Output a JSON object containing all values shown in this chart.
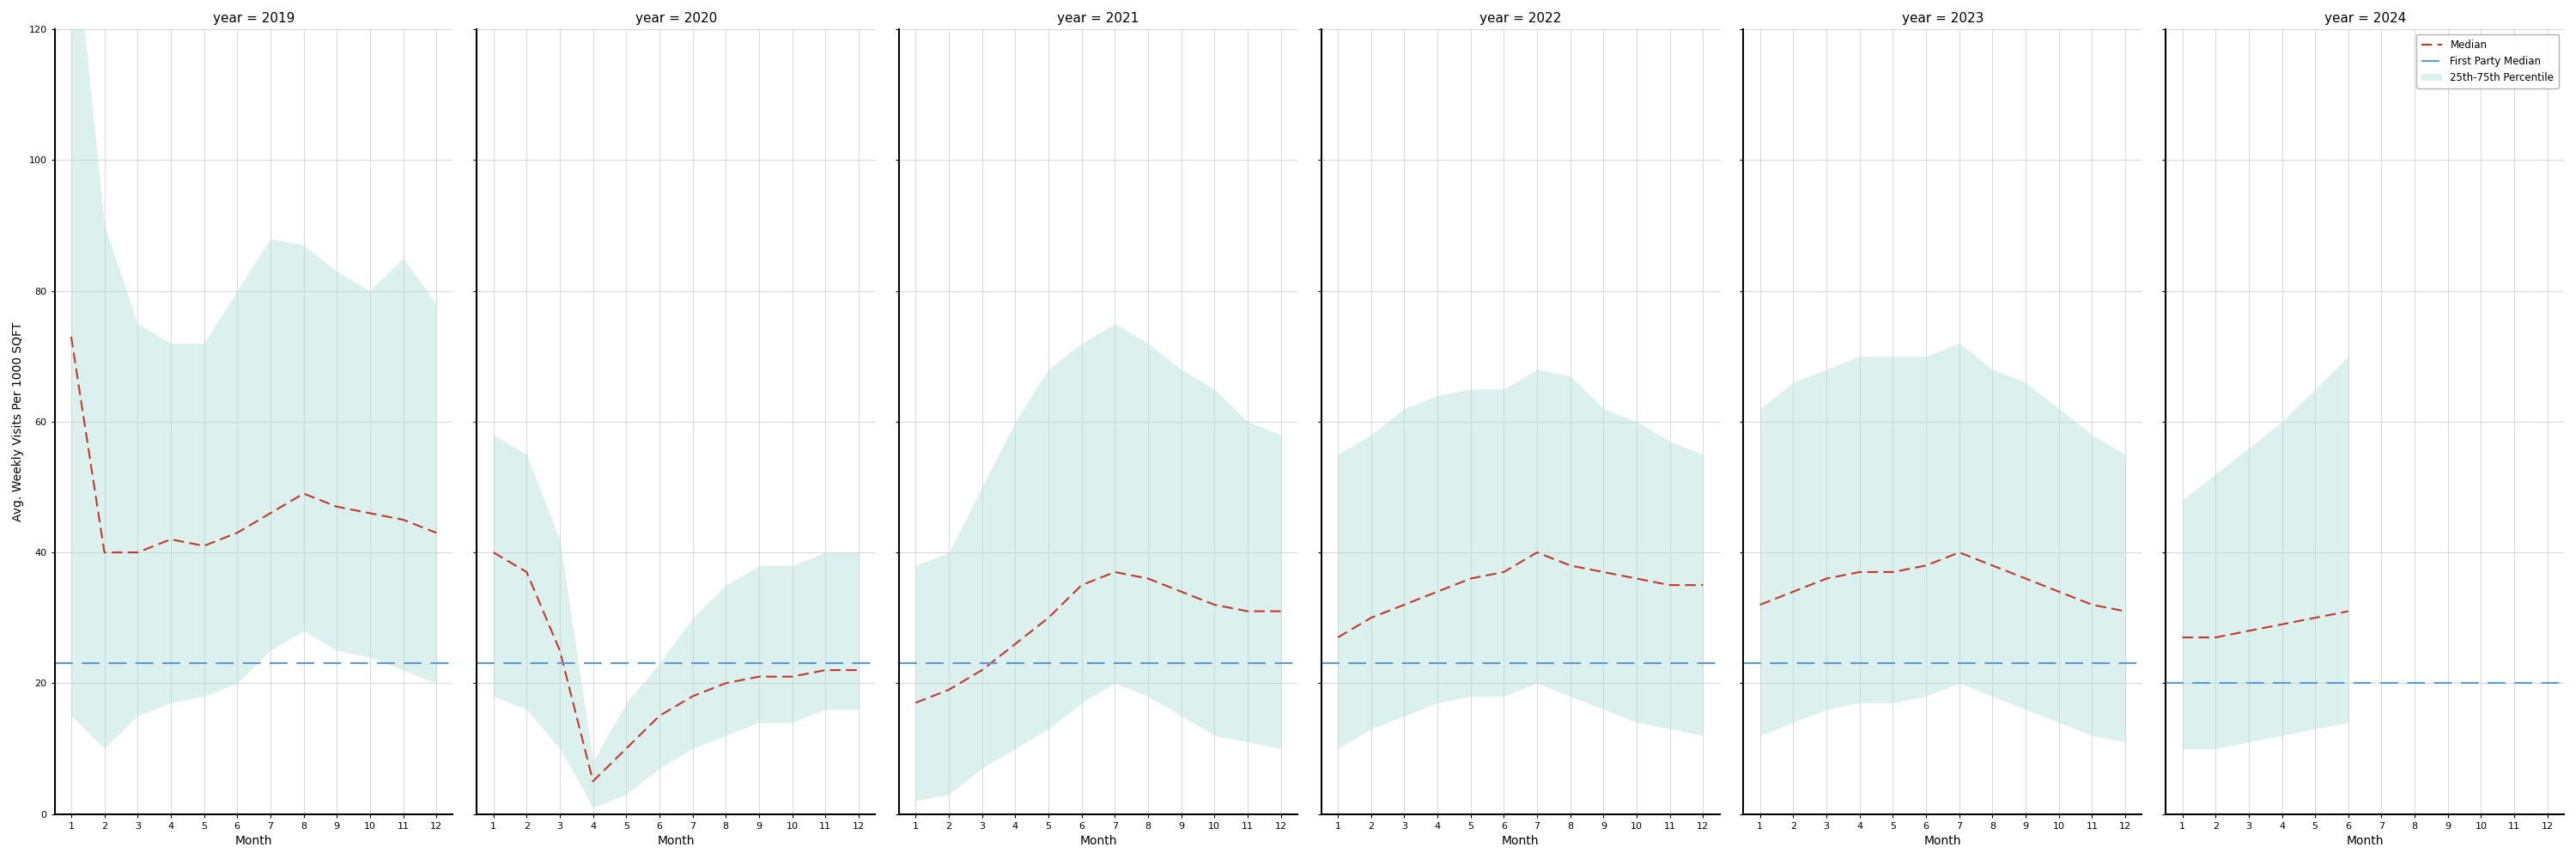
{
  "years": [
    2019,
    2020,
    2021,
    2022,
    2023,
    2024
  ],
  "months": [
    1,
    2,
    3,
    4,
    5,
    6,
    7,
    8,
    9,
    10,
    11,
    12
  ],
  "first_party_median": {
    "2019": 23,
    "2020": 23,
    "2021": 23,
    "2022": 23,
    "2023": 23,
    "2024": 20
  },
  "ylim": [
    0,
    120
  ],
  "ylabel": "Avg. Weekly Visits Per 1000 SQFT",
  "xlabel": "Month",
  "yticks": [
    0,
    20,
    40,
    60,
    80,
    100,
    120
  ],
  "median": {
    "2019": [
      73,
      40,
      40,
      42,
      41,
      43,
      46,
      49,
      47,
      46,
      45,
      43
    ],
    "2020": [
      40,
      37,
      25,
      5,
      10,
      15,
      18,
      20,
      21,
      21,
      22,
      22
    ],
    "2021": [
      17,
      19,
      22,
      26,
      30,
      35,
      37,
      36,
      34,
      32,
      31,
      31
    ],
    "2022": [
      27,
      30,
      32,
      34,
      36,
      37,
      40,
      38,
      37,
      36,
      35,
      35
    ],
    "2023": [
      32,
      34,
      36,
      37,
      37,
      38,
      40,
      38,
      36,
      34,
      32,
      31
    ],
    "2024": [
      27,
      27,
      28,
      29,
      30,
      31,
      null,
      null,
      null,
      null,
      null,
      null
    ]
  },
  "p25": {
    "2019": [
      15,
      10,
      15,
      17,
      18,
      20,
      25,
      28,
      25,
      24,
      22,
      20
    ],
    "2020": [
      18,
      16,
      10,
      1,
      3,
      7,
      10,
      12,
      14,
      14,
      16,
      16
    ],
    "2021": [
      2,
      3,
      7,
      10,
      13,
      17,
      20,
      18,
      15,
      12,
      11,
      10
    ],
    "2022": [
      10,
      13,
      15,
      17,
      18,
      18,
      20,
      18,
      16,
      14,
      13,
      12
    ],
    "2023": [
      12,
      14,
      16,
      17,
      17,
      18,
      20,
      18,
      16,
      14,
      12,
      11
    ],
    "2024": [
      10,
      10,
      11,
      12,
      13,
      14,
      null,
      null,
      null,
      null,
      null,
      null
    ]
  },
  "p75": {
    "2019": [
      140,
      90,
      75,
      72,
      72,
      80,
      88,
      87,
      83,
      80,
      85,
      78
    ],
    "2020": [
      58,
      55,
      42,
      8,
      17,
      23,
      30,
      35,
      38,
      38,
      40,
      40
    ],
    "2021": [
      38,
      40,
      50,
      60,
      68,
      72,
      75,
      72,
      68,
      65,
      60,
      58
    ],
    "2022": [
      55,
      58,
      62,
      64,
      65,
      65,
      68,
      67,
      62,
      60,
      57,
      55
    ],
    "2023": [
      62,
      66,
      68,
      70,
      70,
      70,
      72,
      68,
      66,
      62,
      58,
      55
    ],
    "2024": [
      48,
      52,
      56,
      60,
      65,
      70,
      null,
      null,
      null,
      null,
      null,
      null
    ]
  },
  "colors": {
    "median_line": "#c0392b",
    "first_party_line": "#5b9bd5",
    "fill": "#b2dfdb",
    "fill_alpha": 0.45,
    "background": "#ffffff",
    "grid": "#d0d0d0"
  },
  "legend": {
    "median_label": "Median",
    "first_party_label": "First Party Median",
    "fill_label": "25th-75th Percentile"
  }
}
